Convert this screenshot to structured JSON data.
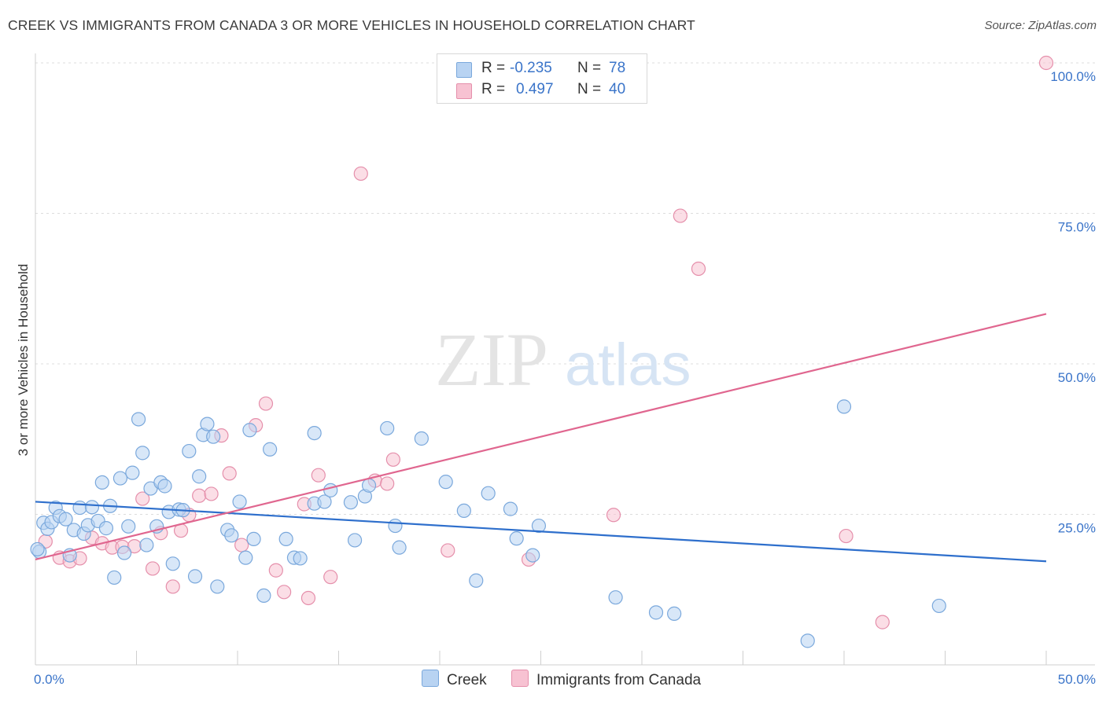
{
  "title": "CREEK VS IMMIGRANTS FROM CANADA 3 OR MORE VEHICLES IN HOUSEHOLD CORRELATION CHART",
  "source": "Source: ZipAtlas.com",
  "watermark": {
    "zip": "ZIP",
    "atlas": "atlas"
  },
  "legend": {
    "rows": [
      {
        "r_label": "R =",
        "r_value": "-0.235",
        "n_label": "N =",
        "n_value": "78"
      },
      {
        "r_label": "R =",
        "r_value": "0.497",
        "n_label": "N =",
        "n_value": "40"
      }
    ]
  },
  "colors": {
    "creek_fill": "#b8d3f2",
    "creek_stroke": "#7aa8dc",
    "creek_line": "#2e6fcc",
    "canada_fill": "#f7c2d2",
    "canada_stroke": "#e58fab",
    "canada_line": "#e0668f",
    "tick_label": "#3a74c9"
  },
  "chart_data": {
    "type": "scatter",
    "ylabel": "3 or more Vehicles in Household",
    "xlim": [
      0,
      50
    ],
    "ylim": [
      0,
      100
    ],
    "x_tick_labels": [
      {
        "value": 0,
        "label": "0.0%"
      },
      {
        "value": 50,
        "label": "50.0%"
      }
    ],
    "y_tick_labels": [
      {
        "value": 25,
        "label": "25.0%"
      },
      {
        "value": 50,
        "label": "50.0%"
      },
      {
        "value": 75,
        "label": "75.0%"
      },
      {
        "value": 100,
        "label": "100.0%"
      }
    ],
    "grid": "horizontal-dashed",
    "legend_placement": "bottom-center",
    "series": [
      {
        "name": "Creek",
        "R": -0.235,
        "N": 78,
        "trend": {
          "x": [
            0,
            50
          ],
          "y": [
            27.1,
            17.2
          ]
        },
        "points": [
          [
            0.2,
            18.8
          ],
          [
            0.4,
            23.6
          ],
          [
            0.6,
            22.6
          ],
          [
            0.8,
            23.7
          ],
          [
            1.0,
            26.1
          ],
          [
            1.2,
            24.7
          ],
          [
            1.5,
            24.2
          ],
          [
            1.7,
            18.2
          ],
          [
            1.9,
            22.4
          ],
          [
            2.2,
            26.1
          ],
          [
            2.4,
            21.8
          ],
          [
            2.6,
            23.2
          ],
          [
            2.8,
            26.2
          ],
          [
            3.1,
            23.9
          ],
          [
            3.3,
            30.3
          ],
          [
            3.5,
            22.7
          ],
          [
            3.7,
            26.4
          ],
          [
            3.9,
            14.5
          ],
          [
            4.2,
            31.0
          ],
          [
            4.4,
            18.6
          ],
          [
            4.6,
            23.0
          ],
          [
            4.8,
            31.9
          ],
          [
            5.1,
            40.8
          ],
          [
            5.3,
            35.2
          ],
          [
            5.5,
            19.9
          ],
          [
            5.7,
            29.3
          ],
          [
            6.0,
            23.0
          ],
          [
            6.2,
            30.3
          ],
          [
            6.4,
            29.7
          ],
          [
            6.6,
            25.4
          ],
          [
            6.8,
            16.8
          ],
          [
            7.1,
            25.8
          ],
          [
            7.3,
            25.7
          ],
          [
            7.6,
            35.5
          ],
          [
            7.9,
            14.7
          ],
          [
            8.1,
            31.3
          ],
          [
            8.3,
            38.2
          ],
          [
            8.5,
            40.0
          ],
          [
            8.8,
            37.9
          ],
          [
            9.0,
            13.0
          ],
          [
            9.5,
            22.4
          ],
          [
            9.7,
            21.5
          ],
          [
            10.1,
            27.1
          ],
          [
            10.4,
            17.8
          ],
          [
            10.6,
            39.0
          ],
          [
            10.8,
            20.9
          ],
          [
            11.3,
            11.5
          ],
          [
            11.6,
            35.8
          ],
          [
            12.4,
            20.9
          ],
          [
            12.8,
            17.8
          ],
          [
            13.1,
            17.7
          ],
          [
            13.8,
            38.5
          ],
          [
            13.8,
            26.8
          ],
          [
            14.3,
            27.1
          ],
          [
            14.6,
            29.0
          ],
          [
            15.6,
            27.0
          ],
          [
            15.8,
            20.7
          ],
          [
            16.3,
            28.0
          ],
          [
            16.5,
            29.8
          ],
          [
            17.4,
            39.3
          ],
          [
            17.8,
            23.1
          ],
          [
            18.0,
            19.5
          ],
          [
            19.1,
            37.6
          ],
          [
            20.3,
            30.4
          ],
          [
            21.2,
            25.6
          ],
          [
            21.8,
            14.0
          ],
          [
            22.4,
            28.5
          ],
          [
            23.5,
            25.9
          ],
          [
            23.8,
            21.0
          ],
          [
            24.6,
            18.2
          ],
          [
            24.9,
            23.1
          ],
          [
            28.7,
            11.2
          ],
          [
            30.7,
            8.7
          ],
          [
            31.6,
            8.5
          ],
          [
            38.2,
            4.0
          ],
          [
            40.0,
            42.9
          ],
          [
            44.7,
            9.8
          ],
          [
            0.1,
            19.2
          ]
        ]
      },
      {
        "name": "Immigrants from Canada",
        "R": 0.497,
        "N": 40,
        "trend": {
          "x": [
            0,
            50
          ],
          "y": [
            17.5,
            58.3
          ]
        },
        "points": [
          [
            0.5,
            20.5
          ],
          [
            1.2,
            17.8
          ],
          [
            1.7,
            17.2
          ],
          [
            2.2,
            17.7
          ],
          [
            2.8,
            21.1
          ],
          [
            3.3,
            20.2
          ],
          [
            3.8,
            19.5
          ],
          [
            4.3,
            19.6
          ],
          [
            4.9,
            19.7
          ],
          [
            5.3,
            27.6
          ],
          [
            5.8,
            16.0
          ],
          [
            6.2,
            21.9
          ],
          [
            6.8,
            13.0
          ],
          [
            7.2,
            22.3
          ],
          [
            7.6,
            24.9
          ],
          [
            8.1,
            28.1
          ],
          [
            8.7,
            28.4
          ],
          [
            9.2,
            38.1
          ],
          [
            9.6,
            31.8
          ],
          [
            10.2,
            19.9
          ],
          [
            10.9,
            39.8
          ],
          [
            11.4,
            43.4
          ],
          [
            11.9,
            15.7
          ],
          [
            12.3,
            12.1
          ],
          [
            13.3,
            26.7
          ],
          [
            13.5,
            11.1
          ],
          [
            14.0,
            31.5
          ],
          [
            14.6,
            14.6
          ],
          [
            16.1,
            81.6
          ],
          [
            16.8,
            30.6
          ],
          [
            17.7,
            34.1
          ],
          [
            17.4,
            30.1
          ],
          [
            20.4,
            19.0
          ],
          [
            24.4,
            17.5
          ],
          [
            28.6,
            24.9
          ],
          [
            31.9,
            74.6
          ],
          [
            32.8,
            65.8
          ],
          [
            40.1,
            21.4
          ],
          [
            41.9,
            7.1
          ],
          [
            50.0,
            100.0
          ]
        ]
      }
    ]
  }
}
